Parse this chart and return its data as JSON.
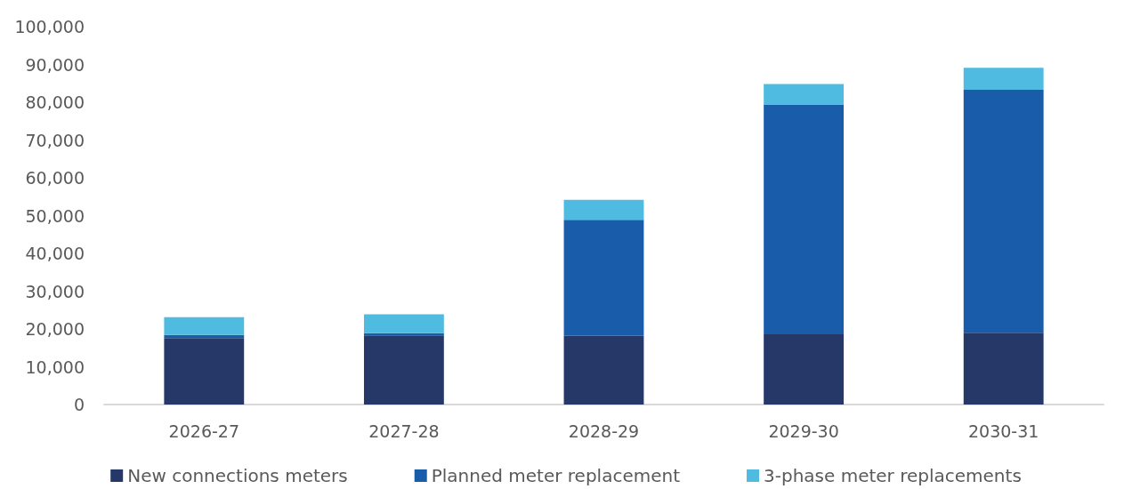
{
  "chart_data": {
    "type": "bar",
    "stacked": true,
    "categories": [
      "2026-27",
      "2027-28",
      "2028-29",
      "2029-30",
      "2030-31"
    ],
    "series": [
      {
        "name": "New connections meters",
        "color": "#253868",
        "values": [
          17600,
          18300,
          18200,
          18600,
          19000
        ]
      },
      {
        "name": "Planned meter replacement",
        "color": "#195ca9",
        "values": [
          800,
          600,
          30700,
          60800,
          64300
        ]
      },
      {
        "name": "3-phase meter replacements",
        "color": "#4fbbe0",
        "values": [
          4700,
          5000,
          5300,
          5400,
          5800
        ]
      }
    ],
    "ylim": [
      0,
      100000
    ],
    "yticks": [
      0,
      {
        "value": 10000,
        "label": "10,000"
      },
      {
        "value": 20000,
        "label": "20,000"
      },
      {
        "value": 30000,
        "label": "30,000"
      },
      {
        "value": 40000,
        "label": "40,000"
      },
      {
        "value": 50000,
        "label": "50,000"
      },
      {
        "value": 60000,
        "label": "60,000"
      },
      {
        "value": 70000,
        "label": "70,000"
      },
      {
        "value": 80000,
        "label": "80,000"
      },
      {
        "value": 90000,
        "label": "90,000"
      },
      {
        "value": 100000,
        "label": "100,000"
      }
    ],
    "grid": false,
    "legend": "bottom"
  }
}
